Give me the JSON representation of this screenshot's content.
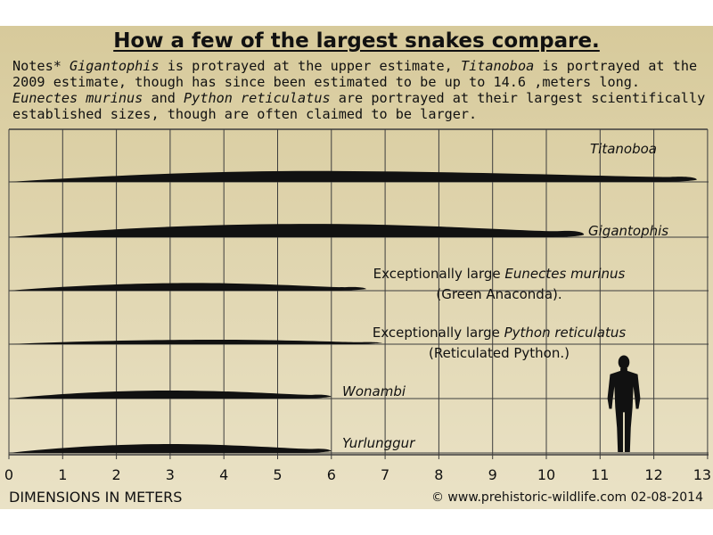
{
  "title": "How a few of the largest snakes compare.",
  "notes": [
    {
      "t": "Notes* "
    },
    {
      "t": "Gigantophis",
      "i": true
    },
    {
      "t": " is protrayed at the upper estimate, "
    },
    {
      "t": "Titanoboa",
      "i": true
    },
    {
      "t": " is portrayed at the 2009 estimate, though has since been estimated to be up to 14.6 ,meters long. "
    },
    {
      "t": "Eunectes murinus",
      "i": true
    },
    {
      "t": " and "
    },
    {
      "t": "Python reticulatus",
      "i": true
    },
    {
      "t": " are portrayed at their largest scientifically established sizes, though are often claimed to be larger."
    }
  ],
  "axis_label": "DIMENSIONS IN METERS",
  "credit": "© www.prehistoric-wildlife.com 02-08-2014",
  "x_ticks": [
    "0",
    "1",
    "2",
    "3",
    "4",
    "5",
    "6",
    "7",
    "8",
    "9",
    "10",
    "11",
    "12",
    "13"
  ],
  "snakes": [
    {
      "name": "Titanoboa",
      "label_lines": [
        [
          {
            "t": "Titanoboa",
            "i": true
          }
        ]
      ],
      "length_m": 12.8,
      "max_girth_m": 0.27,
      "peak_at": 0.45
    },
    {
      "name": "Gigantophis",
      "label_lines": [
        [
          {
            "t": "Gigantophis",
            "i": true
          }
        ]
      ],
      "length_m": 10.7,
      "max_girth_m": 0.33,
      "peak_at": 0.52
    },
    {
      "name": "Eunectes murinus",
      "label_lines": [
        [
          {
            "t": "Exceptionally large "
          },
          {
            "t": "Eunectes murinus",
            "i": true
          }
        ],
        [
          {
            "t": "(Green Anaconda)."
          }
        ]
      ],
      "length_m": 6.65,
      "max_girth_m": 0.19,
      "peak_at": 0.52
    },
    {
      "name": "Python reticulatus",
      "label_lines": [
        [
          {
            "t": "Exceptionally large  "
          },
          {
            "t": "Python reticulatus",
            "i": true
          }
        ],
        [
          {
            "t": "(Reticulated Python.)"
          }
        ]
      ],
      "length_m": 6.95,
      "max_girth_m": 0.11,
      "peak_at": 0.55
    },
    {
      "name": "Wonambi",
      "label_lines": [
        [
          {
            "t": "Wonambi",
            "i": true
          }
        ]
      ],
      "length_m": 6.0,
      "max_girth_m": 0.2,
      "peak_at": 0.5
    },
    {
      "name": "Yurlunggur",
      "label_lines": [
        [
          {
            "t": "Yurlunggur",
            "i": true
          }
        ]
      ],
      "length_m": 6.0,
      "max_girth_m": 0.22,
      "peak_at": 0.5
    }
  ],
  "human_height_m": 1.8,
  "colors": {
    "background": "#e3d9b6",
    "silhouette": "#111111",
    "grid": "#3d3d3d"
  }
}
